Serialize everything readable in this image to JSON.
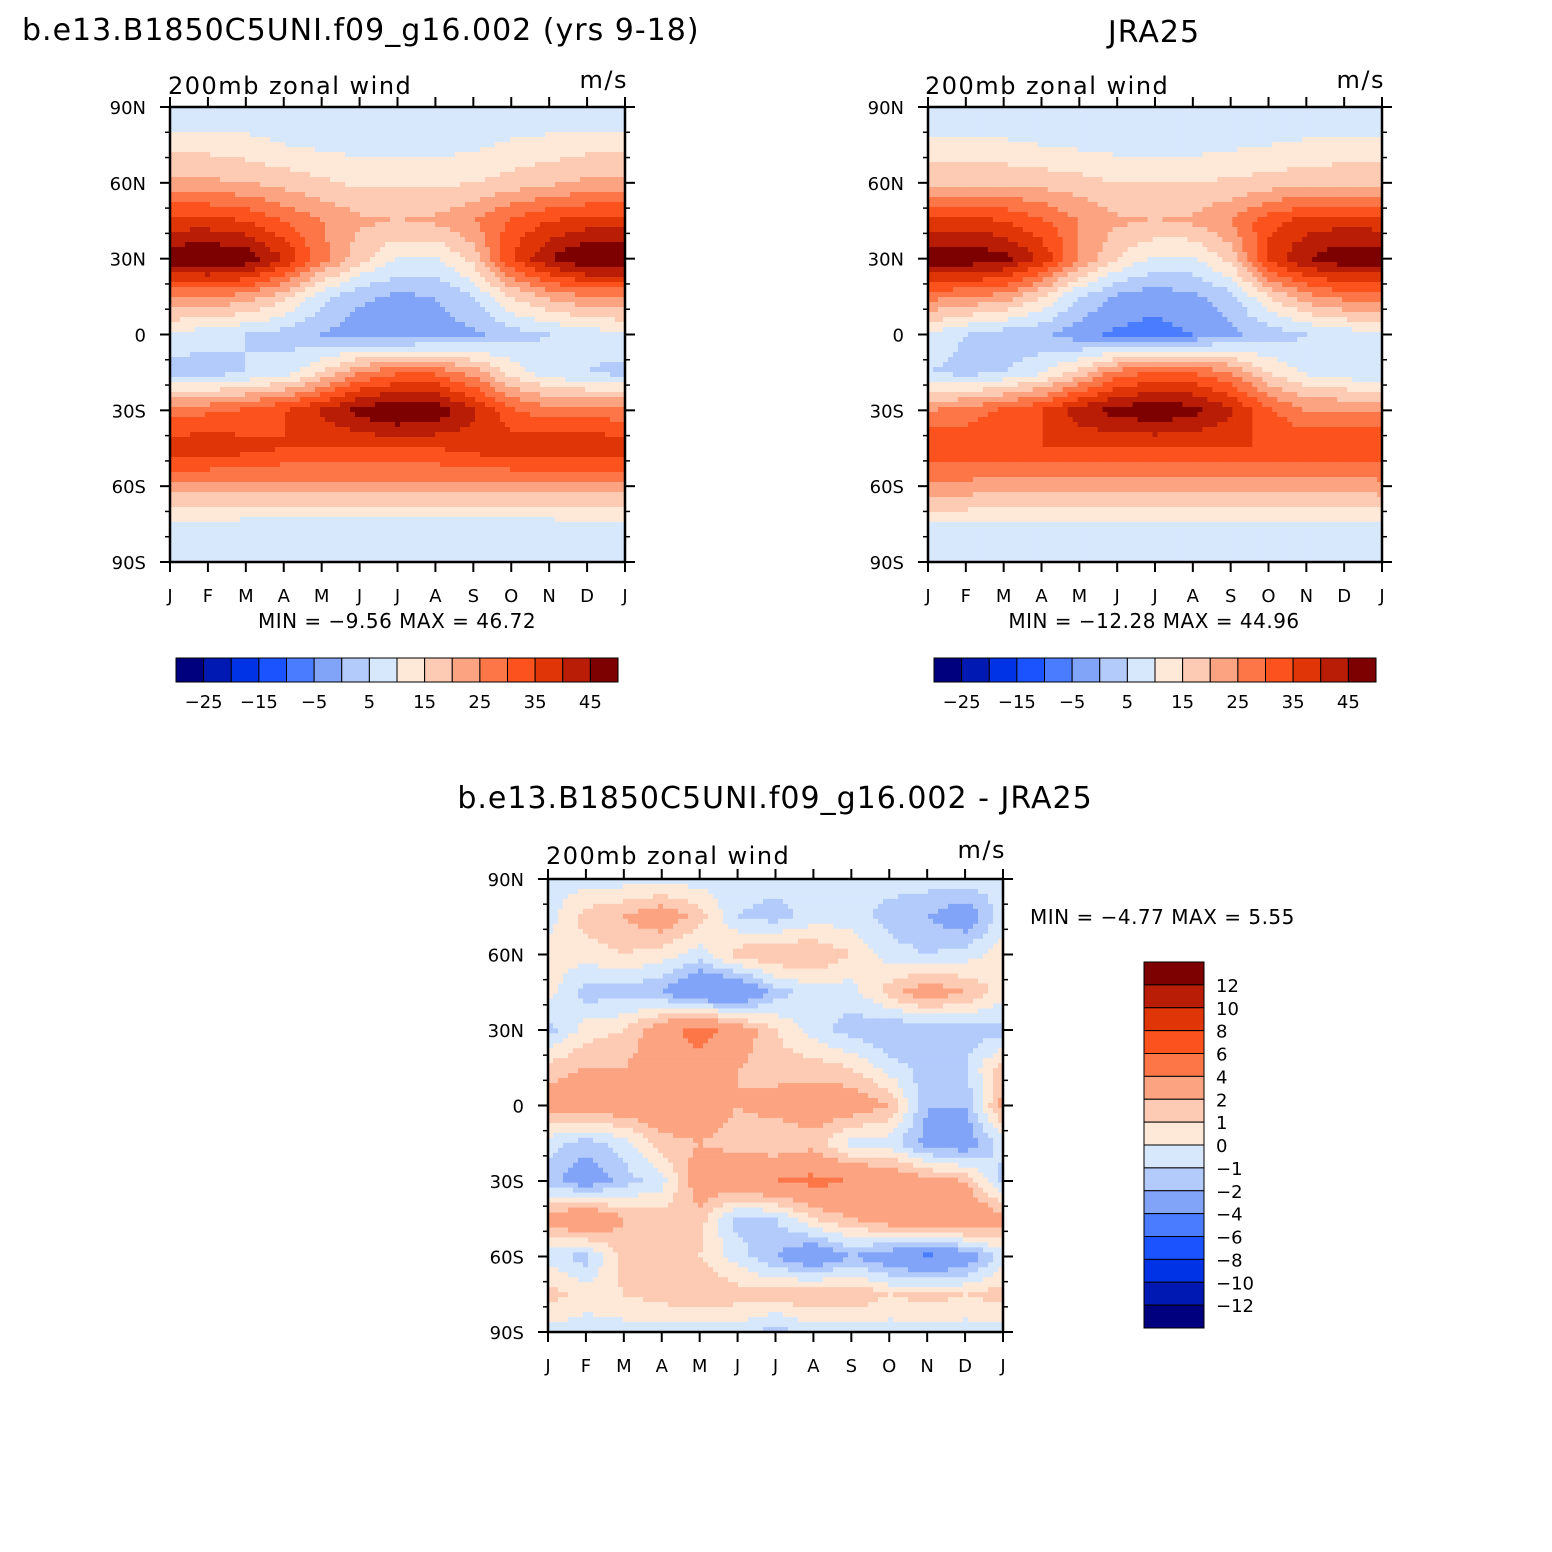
{
  "page": {
    "title_model": "b.e13.B1850C5UNI.f09_g16.002 (yrs 9-18)",
    "title_obs": "JRA25",
    "title_diff": "b.e13.B1850C5UNI.f09_g16.002 - JRA25"
  },
  "colors": {
    "main_scale": [
      "#00007f",
      "#0019b3",
      "#0033e6",
      "#1a53ff",
      "#4a7cff",
      "#82a4f8",
      "#b3cbfb",
      "#d7e8fd",
      "#fee8d8",
      "#fdcab3",
      "#fca381",
      "#fc7648",
      "#fc521d",
      "#e03506",
      "#b91d05",
      "#7d0101"
    ],
    "diff_scale": [
      "#00007f",
      "#0019b3",
      "#0033e6",
      "#1a53ff",
      "#4a7cff",
      "#82a4f8",
      "#b3cbfb",
      "#d7e8fd",
      "#fee8d8",
      "#fdcab3",
      "#fca381",
      "#fc7648",
      "#fc521d",
      "#e03506",
      "#b91d05",
      "#7d0101"
    ]
  },
  "chart_data": [
    {
      "type": "heatmap",
      "id": "model",
      "subtitle_left": "200mb zonal wind",
      "subtitle_right": "m/s",
      "x_ticks": [
        "J",
        "F",
        "M",
        "A",
        "M",
        "J",
        "J",
        "A",
        "S",
        "O",
        "N",
        "D",
        "J"
      ],
      "y_ticks": [
        "90N",
        "60N",
        "30N",
        "0",
        "30S",
        "60S",
        "90S"
      ],
      "stats": "MIN =   −9.56  MAX =   46.72",
      "colorbar_labels": [
        "−25",
        "−15",
        "−5",
        "5",
        "15",
        "25",
        "35",
        "45"
      ],
      "months": [
        "J",
        "F",
        "M",
        "A",
        "M",
        "J",
        "J",
        "A",
        "S",
        "O",
        "N",
        "D",
        "J"
      ],
      "lats": [
        90,
        75,
        60,
        45,
        30,
        15,
        0,
        -15,
        -30,
        -45,
        -60,
        -75,
        -90
      ],
      "values": [
        [
          0,
          0,
          0,
          0,
          0,
          0,
          0,
          0,
          0,
          0,
          0,
          0,
          0
        ],
        [
          8,
          8,
          7,
          5,
          4,
          3,
          3,
          3,
          4,
          6,
          7,
          8,
          8
        ],
        [
          16,
          16,
          15,
          13,
          11,
          9,
          9,
          9,
          10,
          12,
          14,
          16,
          16
        ],
        [
          32,
          32,
          30,
          25,
          20,
          16,
          15,
          16,
          20,
          26,
          30,
          32,
          32
        ],
        [
          44,
          46,
          44,
          35,
          22,
          12,
          5,
          4,
          12,
          30,
          40,
          46,
          46
        ],
        [
          20,
          20,
          18,
          12,
          2,
          -4,
          -6,
          -5,
          0,
          10,
          16,
          20,
          20
        ],
        [
          4,
          2,
          0,
          -2,
          -5,
          -8,
          -9,
          -8,
          -6,
          -2,
          0,
          2,
          4
        ],
        [
          -2,
          -3,
          0,
          2,
          10,
          20,
          24,
          24,
          18,
          8,
          2,
          0,
          -2
        ],
        [
          22,
          24,
          26,
          30,
          36,
          42,
          46,
          44,
          36,
          26,
          22,
          22,
          22
        ],
        [
          34,
          34,
          32,
          30,
          30,
          30,
          30,
          30,
          32,
          34,
          35,
          35,
          34
        ],
        [
          18,
          18,
          18,
          18,
          18,
          18,
          18,
          18,
          18,
          18,
          18,
          18,
          18
        ],
        [
          4,
          4,
          3,
          3,
          3,
          3,
          3,
          3,
          3,
          3,
          3,
          4,
          4
        ],
        [
          0,
          0,
          0,
          0,
          0,
          0,
          0,
          0,
          0,
          0,
          0,
          0,
          0
        ]
      ]
    },
    {
      "type": "heatmap",
      "id": "obs",
      "subtitle_left": "200mb zonal wind",
      "subtitle_right": "m/s",
      "x_ticks": [
        "J",
        "F",
        "M",
        "A",
        "M",
        "J",
        "J",
        "A",
        "S",
        "O",
        "N",
        "D",
        "J"
      ],
      "y_ticks": [
        "90N",
        "60N",
        "30N",
        "0",
        "30S",
        "60S",
        "90S"
      ],
      "stats": "MIN =  −12.28  MAX =   44.96",
      "colorbar_labels": [
        "−25",
        "−15",
        "−5",
        "5",
        "15",
        "25",
        "35",
        "45"
      ],
      "months": [
        "J",
        "F",
        "M",
        "A",
        "M",
        "J",
        "J",
        "A",
        "S",
        "O",
        "N",
        "D",
        "J"
      ],
      "lats": [
        90,
        75,
        60,
        45,
        30,
        15,
        0,
        -15,
        -30,
        -45,
        -60,
        -75,
        -90
      ],
      "values": [
        [
          0,
          0,
          0,
          0,
          0,
          0,
          0,
          0,
          0,
          0,
          0,
          0,
          0
        ],
        [
          6,
          6,
          6,
          5,
          4,
          3,
          3,
          3,
          4,
          5,
          6,
          6,
          6
        ],
        [
          14,
          14,
          14,
          13,
          12,
          10,
          10,
          10,
          11,
          12,
          13,
          14,
          14
        ],
        [
          32,
          32,
          30,
          26,
          20,
          16,
          15,
          16,
          20,
          28,
          32,
          33,
          32
        ],
        [
          44,
          44,
          42,
          34,
          20,
          10,
          4,
          4,
          12,
          32,
          40,
          44,
          44
        ],
        [
          22,
          20,
          18,
          10,
          0,
          -6,
          -8,
          -6,
          -2,
          10,
          18,
          22,
          22
        ],
        [
          4,
          0,
          -3,
          -4,
          -8,
          -11,
          -12,
          -10,
          -6,
          -3,
          0,
          2,
          4
        ],
        [
          0,
          -2,
          0,
          4,
          12,
          22,
          26,
          25,
          20,
          10,
          4,
          2,
          0
        ],
        [
          20,
          22,
          26,
          30,
          38,
          42,
          44,
          42,
          36,
          26,
          20,
          20,
          20
        ],
        [
          30,
          30,
          30,
          30,
          30,
          30,
          30,
          30,
          30,
          30,
          30,
          30,
          30
        ],
        [
          18,
          18,
          17,
          17,
          17,
          17,
          17,
          17,
          17,
          17,
          17,
          17,
          18
        ],
        [
          5,
          5,
          4,
          4,
          4,
          4,
          4,
          4,
          4,
          4,
          4,
          5,
          5
        ],
        [
          0,
          0,
          0,
          0,
          0,
          0,
          0,
          0,
          0,
          0,
          0,
          0,
          0
        ]
      ]
    },
    {
      "type": "heatmap",
      "id": "diff",
      "subtitle_left": "200mb zonal wind",
      "subtitle_right": "m/s",
      "x_ticks": [
        "J",
        "F",
        "M",
        "A",
        "M",
        "J",
        "J",
        "A",
        "S",
        "O",
        "N",
        "D",
        "J"
      ],
      "y_ticks": [
        "90N",
        "60N",
        "30N",
        "0",
        "30S",
        "60S",
        "90S"
      ],
      "stats": "MIN =   −4.77  MAX =    5.55",
      "colorbar_labels": [
        "12",
        "10",
        "8",
        "6",
        "4",
        "2",
        "1",
        "0",
        "−1",
        "−2",
        "−4",
        "−6",
        "−8",
        "−10",
        "−12"
      ],
      "months": [
        "J",
        "F",
        "M",
        "A",
        "M",
        "J",
        "J",
        "A",
        "S",
        "O",
        "N",
        "D",
        "J"
      ],
      "lats": [
        90,
        75,
        60,
        45,
        30,
        15,
        0,
        -15,
        -30,
        -45,
        -60,
        -75,
        -90
      ],
      "values": [
        [
          -0.5,
          -0.5,
          -0.5,
          -0.5,
          -0.5,
          -0.5,
          -0.5,
          -0.5,
          -0.5,
          -0.5,
          -0.5,
          -0.5,
          -0.5
        ],
        [
          -0.5,
          1.5,
          2,
          3,
          1.5,
          -1,
          -1.5,
          -0.5,
          -0.5,
          -1.5,
          -2,
          -3,
          -0.5
        ],
        [
          0.5,
          0.5,
          1,
          0.5,
          -0.5,
          1.5,
          2,
          2,
          1,
          -0.5,
          -1,
          -0.5,
          0.5
        ],
        [
          0.5,
          -1.5,
          -1.5,
          -2,
          -4,
          -4,
          -1.5,
          -0.5,
          -0.5,
          1.5,
          3,
          2,
          0.5
        ],
        [
          -1.5,
          0.5,
          1,
          3,
          5,
          3,
          1,
          -0.5,
          -1.5,
          -2,
          -2,
          -1.5,
          -1.5
        ],
        [
          1.5,
          2,
          2,
          3,
          3,
          2,
          1.5,
          1.5,
          1,
          -0.5,
          -1.5,
          -1,
          1.5
        ],
        [
          2.5,
          3,
          3,
          3.5,
          3,
          2,
          2.5,
          3,
          3,
          2,
          -2,
          -2,
          2.5
        ],
        [
          -0.5,
          -1.5,
          -0.5,
          1.5,
          2,
          1.5,
          1,
          1.5,
          -0.5,
          -0.5,
          -2.5,
          -3,
          -0.5
        ],
        [
          -1.5,
          -3,
          -1.5,
          -0.5,
          3,
          3.5,
          4,
          4.5,
          4,
          3.5,
          2.5,
          2,
          -1.5
        ],
        [
          2.5,
          4,
          2,
          1.5,
          1.5,
          -1.5,
          -1,
          1,
          2,
          3,
          3.5,
          4,
          2.5
        ],
        [
          -0.5,
          -1.5,
          1.5,
          1.5,
          1,
          -0.5,
          -2,
          -3.5,
          -2,
          -3,
          -4.5,
          -3,
          -0.5
        ],
        [
          1.5,
          0.5,
          1,
          1.5,
          2,
          1.5,
          1.5,
          2,
          2,
          1,
          1.5,
          1,
          1.5
        ],
        [
          -0.5,
          -0.5,
          -0.5,
          -0.5,
          -0.5,
          -0.5,
          -1.5,
          -0.5,
          -0.5,
          -0.5,
          -0.5,
          -0.5,
          -0.5
        ]
      ]
    }
  ]
}
